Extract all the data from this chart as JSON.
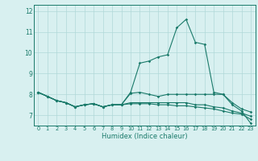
{
  "xlabel": "Humidex (Indice chaleur)",
  "x_values": [
    0,
    1,
    2,
    3,
    4,
    5,
    6,
    7,
    8,
    9,
    10,
    11,
    12,
    13,
    14,
    15,
    16,
    17,
    18,
    19,
    20,
    21,
    22,
    23
  ],
  "line1": [
    8.1,
    7.9,
    7.7,
    7.6,
    7.4,
    7.5,
    7.55,
    7.4,
    7.5,
    7.5,
    8.1,
    9.5,
    9.6,
    9.8,
    9.9,
    11.2,
    11.6,
    10.5,
    10.4,
    8.1,
    8.0,
    7.5,
    7.2,
    6.6
  ],
  "line2": [
    8.1,
    7.9,
    7.7,
    7.6,
    7.4,
    7.5,
    7.55,
    7.4,
    7.5,
    7.5,
    8.05,
    8.1,
    8.0,
    7.9,
    8.0,
    8.0,
    8.0,
    8.0,
    8.0,
    8.0,
    8.0,
    7.6,
    7.3,
    7.15
  ],
  "line3": [
    8.1,
    7.9,
    7.7,
    7.6,
    7.4,
    7.5,
    7.55,
    7.4,
    7.5,
    7.5,
    7.6,
    7.6,
    7.6,
    7.6,
    7.6,
    7.6,
    7.6,
    7.5,
    7.5,
    7.4,
    7.35,
    7.2,
    7.1,
    6.95
  ],
  "line4": [
    8.1,
    7.9,
    7.7,
    7.6,
    7.4,
    7.5,
    7.55,
    7.4,
    7.5,
    7.5,
    7.55,
    7.55,
    7.55,
    7.5,
    7.5,
    7.45,
    7.45,
    7.4,
    7.35,
    7.3,
    7.2,
    7.1,
    7.05,
    6.8
  ],
  "line_color": "#1a7a6a",
  "bg_color": "#d8f0f0",
  "grid_color": "#b0d8d8",
  "ylim": [
    6.5,
    12.3
  ],
  "yticks": [
    7,
    8,
    9,
    10,
    11,
    12
  ],
  "marker": "D",
  "markersize": 1.8,
  "linewidth": 0.8
}
